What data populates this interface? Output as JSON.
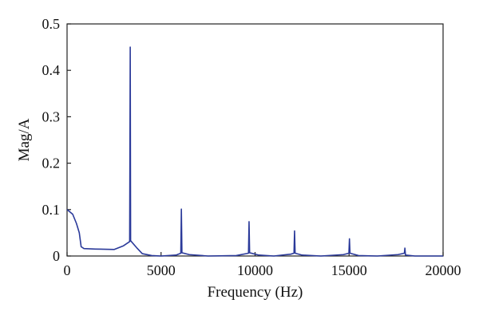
{
  "chart_data": {
    "type": "line",
    "title": "",
    "xlabel": "Frequency (Hz)",
    "ylabel": "Mag/A",
    "xlim": [
      0,
      20000
    ],
    "ylim": [
      0,
      0.5
    ],
    "xticks": [
      0,
      5000,
      10000,
      15000,
      20000
    ],
    "xtick_labels": [
      "0",
      "5000",
      "10000",
      "15000",
      "20000"
    ],
    "yticks": [
      0,
      0.1,
      0.2,
      0.3,
      0.4,
      0.5
    ],
    "ytick_labels": [
      "0",
      "0.1",
      "0.2",
      "0.3",
      "0.4",
      "0.5"
    ],
    "grid": false,
    "legend": "none",
    "series": [
      {
        "color": "#2b3a9a",
        "points": [
          [
            0,
            0.1
          ],
          [
            300,
            0.09
          ],
          [
            500,
            0.07
          ],
          [
            650,
            0.05
          ],
          [
            750,
            0.02
          ],
          [
            900,
            0.016
          ],
          [
            1500,
            0.015
          ],
          [
            2500,
            0.014
          ],
          [
            3000,
            0.022
          ],
          [
            3330,
            0.031
          ],
          [
            3360,
            0.45
          ],
          [
            3380,
            0.033
          ],
          [
            3700,
            0.018
          ],
          [
            4000,
            0.005
          ],
          [
            4500,
            0.001
          ],
          [
            5000,
            0.0
          ],
          [
            5800,
            0.002
          ],
          [
            6050,
            0.006
          ],
          [
            6080,
            0.101
          ],
          [
            6110,
            0.007
          ],
          [
            6500,
            0.003
          ],
          [
            7500,
            0.0
          ],
          [
            9000,
            0.001
          ],
          [
            9650,
            0.006
          ],
          [
            9680,
            0.074
          ],
          [
            9710,
            0.007
          ],
          [
            10200,
            0.002
          ],
          [
            11000,
            0.0
          ],
          [
            11900,
            0.004
          ],
          [
            12070,
            0.006
          ],
          [
            12100,
            0.054
          ],
          [
            12130,
            0.006
          ],
          [
            12500,
            0.002
          ],
          [
            13500,
            0.0
          ],
          [
            14700,
            0.003
          ],
          [
            14990,
            0.006
          ],
          [
            15020,
            0.037
          ],
          [
            15050,
            0.006
          ],
          [
            15500,
            0.001
          ],
          [
            16500,
            0.0
          ],
          [
            17600,
            0.003
          ],
          [
            17940,
            0.006
          ],
          [
            17970,
            0.017
          ],
          [
            18000,
            0.002
          ],
          [
            18500,
            0.0
          ],
          [
            20000,
            0.0
          ]
        ]
      }
    ]
  }
}
